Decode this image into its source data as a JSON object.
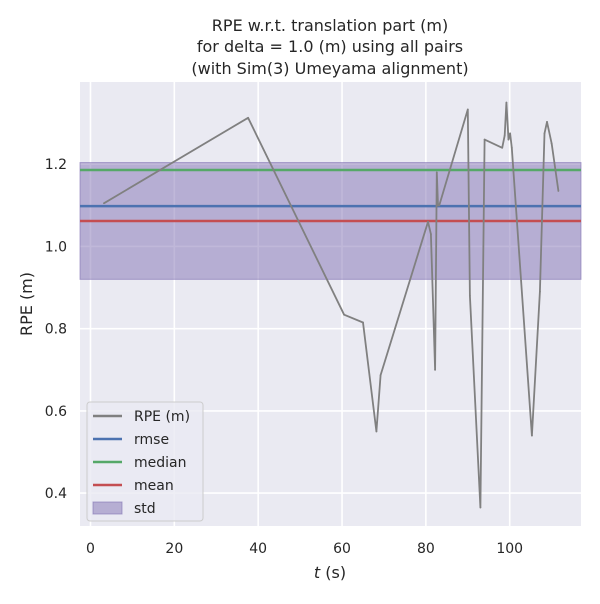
{
  "chart_data": {
    "type": "line",
    "title": [
      "RPE w.r.t. translation part (m)",
      "for delta = 1.0 (m) using all pairs",
      "(with Sim(3) Umeyama alignment)"
    ],
    "xlabel_italic": "t",
    "xlabel_rest": " (s)",
    "ylabel": "RPE (m)",
    "xlim": [
      -2.5,
      117
    ],
    "ylim": [
      0.32,
      1.4
    ],
    "xticks": [
      0,
      20,
      40,
      60,
      80,
      100
    ],
    "yticks": [
      0.4,
      0.6,
      0.8,
      1.0,
      1.2
    ],
    "ytick_labels": [
      "0.4",
      "0.6",
      "0.8",
      "1.0",
      "1.2"
    ],
    "grid": true,
    "legend_position": "lower-left",
    "series": [
      {
        "name": "RPE (m)",
        "color": "#808080",
        "x": [
          3.2,
          37.6,
          60.5,
          65.0,
          68.2,
          69.2,
          80.5,
          81.2,
          82.2,
          82.6,
          82.9,
          83.2,
          90.0,
          90.5,
          93.0,
          94.0,
          98.2,
          98.8,
          99.2,
          99.7,
          100.1,
          100.5,
          105.3,
          107.2,
          108.3,
          108.9,
          110.0,
          111.6
        ],
        "y": [
          1.105,
          1.313,
          0.834,
          0.815,
          0.55,
          0.687,
          1.06,
          1.03,
          0.7,
          1.18,
          1.1,
          1.1,
          1.333,
          0.88,
          0.365,
          1.26,
          1.24,
          1.27,
          1.35,
          1.26,
          1.275,
          1.24,
          0.54,
          0.89,
          1.275,
          1.303,
          1.25,
          1.135
        ]
      }
    ],
    "hlines": [
      {
        "name": "rmse",
        "value": 1.098,
        "color": "#4c72b0"
      },
      {
        "name": "median",
        "value": 1.186,
        "color": "#55a868"
      },
      {
        "name": "mean",
        "value": 1.062,
        "color": "#c44e52"
      }
    ],
    "std_band": {
      "name": "std",
      "low": 0.92,
      "high": 1.204,
      "color": "#8172b3"
    },
    "legend_order": [
      {
        "name": "RPE (m)",
        "kind": "line",
        "color": "#808080"
      },
      {
        "name": "rmse",
        "kind": "line",
        "color": "#4c72b0"
      },
      {
        "name": "median",
        "kind": "line",
        "color": "#55a868"
      },
      {
        "name": "mean",
        "kind": "line",
        "color": "#c44e52"
      },
      {
        "name": "std",
        "kind": "patch",
        "color": "#8172b3"
      }
    ]
  }
}
